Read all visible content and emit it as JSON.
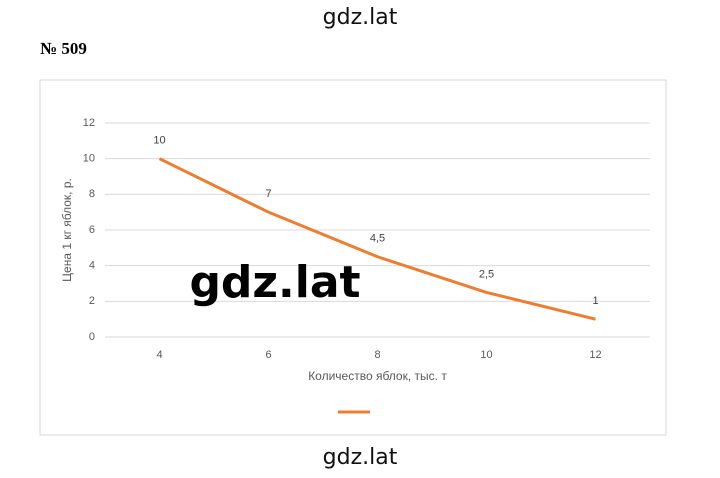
{
  "header": {
    "watermark": "gdz.lat",
    "problem": "№ 509"
  },
  "chart_data": {
    "type": "line",
    "x_label": "Количество яблок, тыс. т",
    "y_label": "Цена 1 кг яблок, р.",
    "categories": [
      "4",
      "6",
      "8",
      "10",
      "12"
    ],
    "series": [
      {
        "color": "#ed7d31",
        "values": [
          10,
          7,
          4.5,
          2.5,
          1
        ],
        "value_labels": [
          "10",
          "7",
          "4,5",
          "2,5",
          "1"
        ]
      }
    ],
    "ylim": [
      0,
      12
    ],
    "yticks": [
      0,
      2,
      4,
      6,
      8,
      10,
      12
    ],
    "grid": true,
    "legend": "bottom"
  },
  "watermarks": [
    "gdz.lat",
    "gdz.lat"
  ]
}
